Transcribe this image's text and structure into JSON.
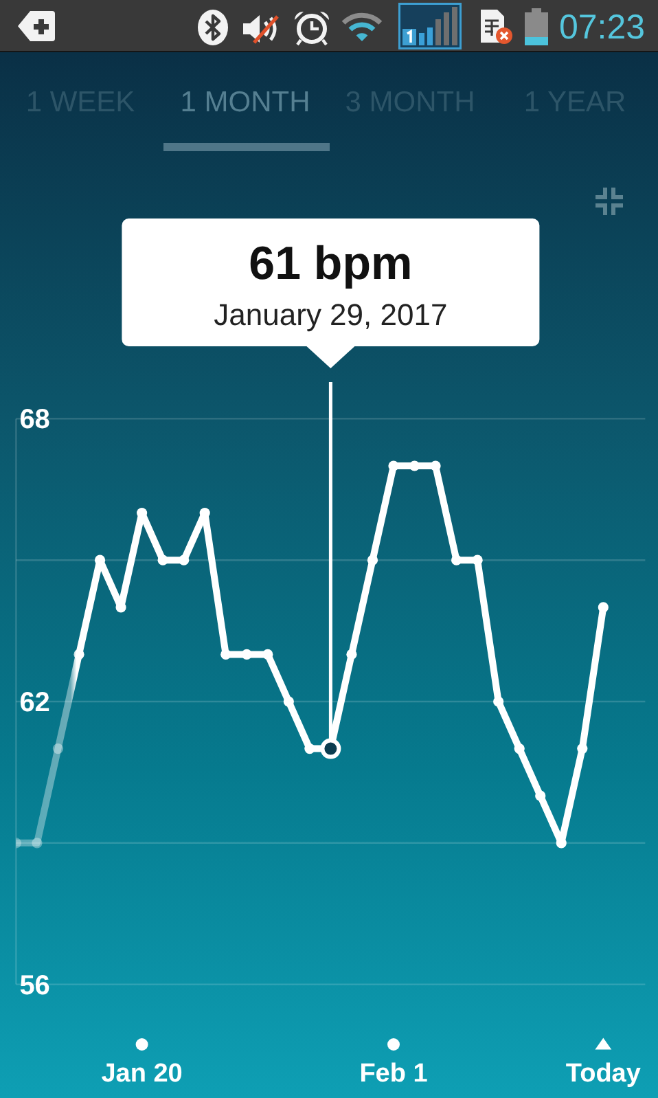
{
  "chart_data": {
    "type": "line",
    "x": [
      "2017-01-14",
      "2017-01-15",
      "2017-01-16",
      "2017-01-17",
      "2017-01-18",
      "2017-01-19",
      "2017-01-20",
      "2017-01-21",
      "2017-01-22",
      "2017-01-23",
      "2017-01-24",
      "2017-01-25",
      "2017-01-26",
      "2017-01-27",
      "2017-01-28",
      "2017-01-29",
      "2017-01-30",
      "2017-01-31",
      "2017-02-01",
      "2017-02-02",
      "2017-02-03",
      "2017-02-04",
      "2017-02-05",
      "2017-02-06",
      "2017-02-07",
      "2017-02-08",
      "2017-02-09",
      "2017-02-10",
      "2017-02-11"
    ],
    "values": [
      59,
      59,
      61,
      63,
      65,
      64,
      66,
      65,
      65,
      66,
      63,
      63,
      63,
      62,
      61,
      61,
      63,
      65,
      67,
      67,
      67,
      65,
      65,
      62,
      61,
      60,
      59,
      61,
      64
    ],
    "color": "#ffffff",
    "marker": "circle",
    "line_style": "solid",
    "xlim": [
      "2017-01-14",
      "2017-02-13"
    ],
    "xticks": [
      {
        "value": "2017-01-20",
        "label": "Jan 20"
      },
      {
        "value": "2017-02-01",
        "label": "Feb 1"
      },
      {
        "value": "2017-02-11",
        "label": "Today"
      }
    ],
    "ylim": [
      56,
      68
    ],
    "yticks": [
      56,
      {
        "value": 59,
        "label": null
      },
      62,
      {
        "value": 65,
        "label": null
      },
      68
    ],
    "grid": "y",
    "ref_lines": [
      {
        "axis": "x",
        "value": "2017-01-29",
        "color": "#ffffff"
      }
    ],
    "annotations": [
      "07:23",
      "1 WEEK",
      "1 MONTH",
      "3 MONTH",
      "1 YEAR",
      "61 bpm",
      "January 29, 2017"
    ]
  }
}
